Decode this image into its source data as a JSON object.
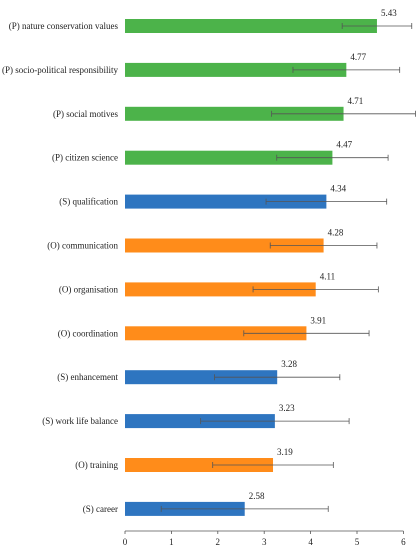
{
  "chart_data": {
    "type": "bar",
    "orientation": "horizontal",
    "title": "",
    "xlabel": "",
    "ylabel": "",
    "xlim": [
      0,
      6
    ],
    "x_ticks": [
      0,
      1,
      2,
      3,
      4,
      5,
      6
    ],
    "grid": false,
    "legend": "none",
    "colors": {
      "P": "#4cb34a",
      "S": "#2e75c0",
      "O": "#ff8c1a",
      "error_bar": "#555555"
    },
    "categories": [
      "(P) nature conservation values",
      "(P) socio-political responsibility",
      "(P) social motives",
      "(P) citizen science",
      "(S) qualification",
      "(O) communication",
      "(O) organisation",
      "(O) coordination",
      "(S) enhancement",
      "(S) work life balance",
      "(O) training",
      "(S) career"
    ],
    "groups": [
      "P",
      "P",
      "P",
      "P",
      "S",
      "O",
      "O",
      "O",
      "S",
      "S",
      "O",
      "S"
    ],
    "values": [
      5.43,
      4.77,
      4.71,
      4.47,
      4.34,
      4.28,
      4.11,
      3.91,
      3.28,
      3.23,
      3.19,
      2.58
    ],
    "value_labels": [
      "5.43",
      "4.77",
      "4.71",
      "4.47",
      "4.34",
      "4.28",
      "4.11",
      "3.91",
      "3.28",
      "3.23",
      "3.19",
      "2.58"
    ],
    "error": [
      0.75,
      1.15,
      1.55,
      1.2,
      1.3,
      1.15,
      1.35,
      1.35,
      1.35,
      1.6,
      1.3,
      1.8
    ]
  }
}
